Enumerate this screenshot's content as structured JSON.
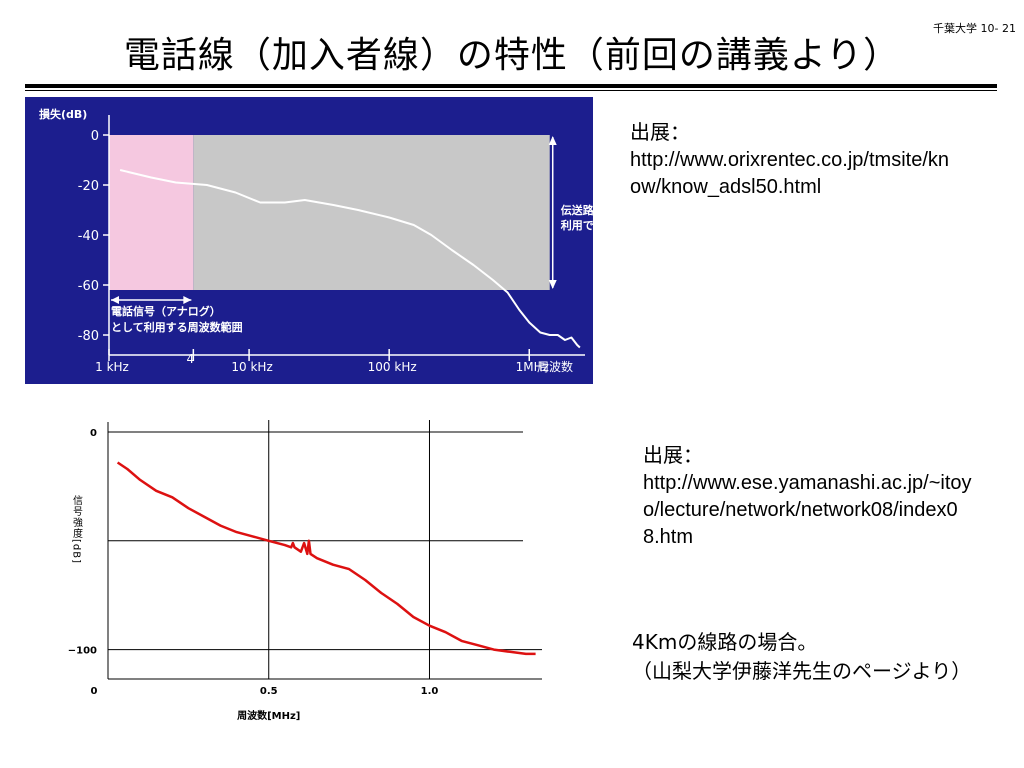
{
  "slide": {
    "page_number": "千葉大学 10- 21",
    "title": "電話線（加入者線）の特性（前回の講義より）"
  },
  "sources": {
    "first": {
      "label": "出展：",
      "url": "http://www.orixrentec.co.jp/tmsite/know/know_adsl50.html"
    },
    "second": {
      "label": "出展：",
      "url": "http://www.ese.yamanashi.ac.jp/~itoyo/lecture/network/network08/index08.htm"
    }
  },
  "note": {
    "line1": "4Kmの線路の場合。",
    "line2": "（山梨大学伊藤洋先生のページより）"
  },
  "colors": {
    "top_background": "#1c1e8e",
    "voice_band": "#f5c8e0",
    "transmission_band": "#c8c8c8",
    "top_curve": "#ffffff",
    "bottom_curve": "#dd1111"
  },
  "chart_data": [
    {
      "type": "line",
      "ylabel": "損失(dB)",
      "y_ticks": [
        "0",
        "-20",
        "-40",
        "-60",
        "-80"
      ],
      "y_tick_values": [
        0,
        -20,
        -40,
        -60,
        -80
      ],
      "ylim": [
        -84,
        4
      ],
      "x_scale": "log",
      "x_unit": "kHz",
      "xlim": [
        1,
        2500
      ],
      "x_ticks": [
        {
          "value": 1,
          "label": "1 kHz"
        },
        {
          "value": 4,
          "label": "4"
        },
        {
          "value": 10,
          "label": "10 kHz"
        },
        {
          "value": 100,
          "label": "100 kHz"
        },
        {
          "value": 1000,
          "label": "1MHz"
        }
      ],
      "xlabel": "周波数",
      "regions": [
        {
          "name": "voice_band",
          "from": 1,
          "to": 4,
          "y_from": 0,
          "y_to": -62
        },
        {
          "name": "transmission_band",
          "from": 4,
          "to": 1400,
          "y_from": 0,
          "y_to": -62
        }
      ],
      "annotations": {
        "usable_range_line1": "伝送路して",
        "usable_range_line2": "利用できる範囲",
        "voice_line1": "電話信号（アナログ）",
        "voice_line2": "として利用する周波数範囲"
      },
      "series": [
        {
          "x": [
            1.2,
            2,
            3,
            5,
            8,
            12,
            18,
            25,
            40,
            60,
            100,
            150,
            200,
            280,
            400,
            550,
            700,
            850,
            1000,
            1200,
            1400,
            1600,
            1800,
            2000,
            2200,
            2300
          ],
          "y": [
            -14,
            -17,
            -19,
            -20,
            -23,
            -27,
            -27,
            -26,
            -28,
            -30,
            -33,
            -36,
            -40,
            -46,
            -52,
            -58,
            -63,
            -70,
            -75,
            -79,
            -80,
            -80,
            -82,
            -81,
            -84,
            -85
          ]
        }
      ]
    },
    {
      "type": "line",
      "ylabel": "信号強度[dB]",
      "y_ticks": [
        "0",
        "−100"
      ],
      "y_tick_values": [
        0,
        -100
      ],
      "ylim": [
        -108,
        0
      ],
      "xlabel": "周波数[MHz]",
      "x_ticks": [
        "0",
        "0.5",
        "1.0"
      ],
      "x_tick_values": [
        0,
        0.5,
        1.0
      ],
      "xlim": [
        0,
        1.35
      ],
      "horizontal_grid": [
        0,
        -50,
        -100
      ],
      "vertical_grid": [
        0.5,
        1.0
      ],
      "series": [
        {
          "x": [
            0.03,
            0.06,
            0.1,
            0.15,
            0.2,
            0.25,
            0.3,
            0.35,
            0.4,
            0.45,
            0.5,
            0.55,
            0.57,
            0.575,
            0.58,
            0.6,
            0.61,
            0.62,
            0.625,
            0.63,
            0.65,
            0.7,
            0.75,
            0.8,
            0.85,
            0.9,
            0.95,
            1.0,
            1.05,
            1.1,
            1.15,
            1.2,
            1.25,
            1.3,
            1.33
          ],
          "y": [
            -14,
            -17,
            -22,
            -27,
            -30,
            -35,
            -39,
            -43,
            -46,
            -48,
            -50,
            -52,
            -53,
            -51,
            -53,
            -55,
            -51,
            -56,
            -50,
            -56,
            -58,
            -61,
            -63,
            -68,
            -74,
            -79,
            -85,
            -89,
            -92,
            -96,
            -98,
            -100,
            -101,
            -102,
            -102
          ]
        }
      ]
    }
  ]
}
